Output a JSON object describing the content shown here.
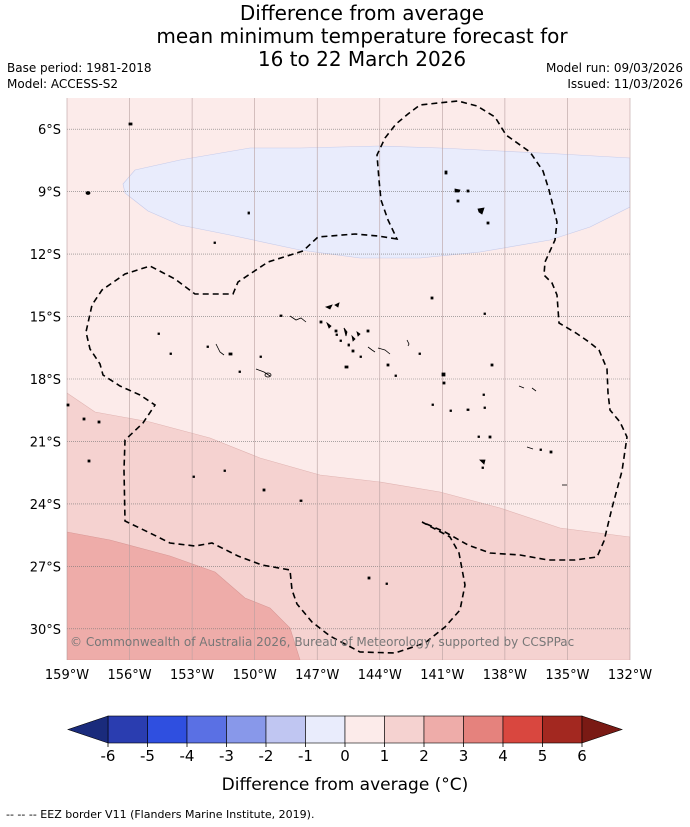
{
  "title": {
    "line1": "Difference from average",
    "line2": "mean minimum temperature forecast for",
    "line3": "16 to 22 March 2026"
  },
  "meta_left": {
    "base_period": "Base period: 1981-2018",
    "model": "Model: ACCESS-S2"
  },
  "meta_right": {
    "model_run": "Model run: 09/03/2026",
    "issued": "Issued: 11/03/2026"
  },
  "map": {
    "lat_labels": [
      "6°S",
      "9°S",
      "12°S",
      "15°S",
      "18°S",
      "21°S",
      "24°S",
      "27°S",
      "30°S"
    ],
    "lon_labels": [
      "159°W",
      "156°W",
      "153°W",
      "150°W",
      "147°W",
      "144°W",
      "141°W",
      "138°W",
      "135°W",
      "132°W"
    ],
    "lat_values": [
      -6,
      -9,
      -12,
      -15,
      -18,
      -21,
      -24,
      -27,
      -30
    ],
    "lon_values": [
      -159,
      -156,
      -153,
      -150,
      -147,
      -144,
      -141,
      -138,
      -135,
      -132
    ],
    "extent": {
      "lon_min": -159,
      "lon_max": -132,
      "lat_max": -4.5,
      "lat_min": -31.5
    },
    "copyright": "© Commonwealth of Australia 2026, Bureau of Meteorology, supported by CCSPPac"
  },
  "colorbar": {
    "ticks": [
      "-6",
      "-5",
      "-4",
      "-3",
      "-2",
      "-1",
      "0",
      "1",
      "2",
      "3",
      "4",
      "5",
      "6"
    ],
    "colors": [
      "#1a2b7c",
      "#2a3db0",
      "#2f4fe0",
      "#5a70e4",
      "#8898ea",
      "#c0c6f2",
      "#e9ecfc",
      "#fcebea",
      "#f5d2d0",
      "#eeaca9",
      "#e5827d",
      "#d9473f",
      "#a32820",
      "#7a1a14"
    ],
    "label": "Difference from average (°C)"
  },
  "footer": "--  --  -- EEZ border V11 (Flanders Marine Institute, 2019)."
}
